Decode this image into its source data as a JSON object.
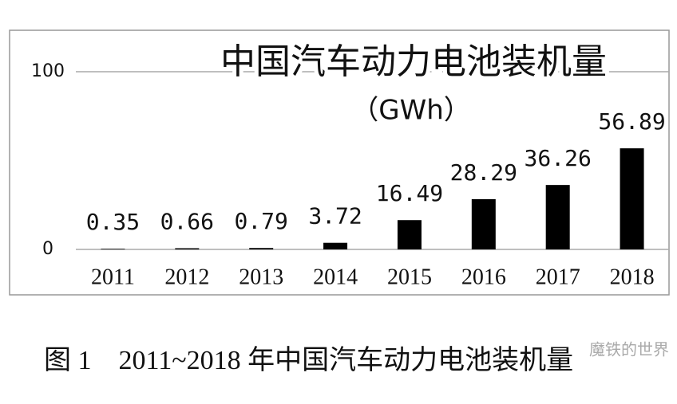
{
  "chart_data": {
    "type": "bar",
    "title": "中国汽车动力电池装机量",
    "subtitle": "（GWh）",
    "categories": [
      "2011",
      "2012",
      "2013",
      "2014",
      "2015",
      "2016",
      "2017",
      "2018"
    ],
    "values": [
      0.35,
      0.66,
      0.79,
      3.72,
      16.49,
      28.29,
      36.26,
      56.89
    ],
    "color": "#000000",
    "ylim": [
      0,
      100
    ],
    "yticks": [
      0,
      100
    ],
    "grid": true,
    "caption": "图 1　2011~2018 年中国汽车动力电池装机量",
    "watermark": "魔铁的世界"
  }
}
